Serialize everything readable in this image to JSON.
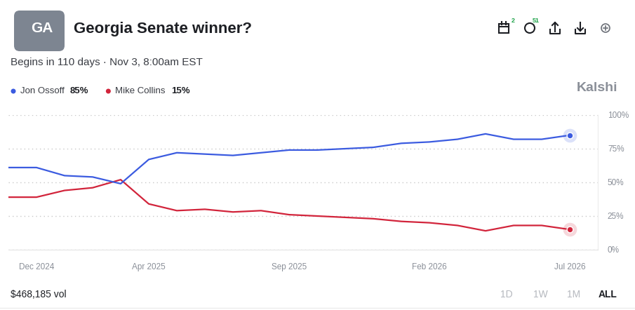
{
  "chart_data": {
    "type": "line",
    "title": "Georgia Senate winner?",
    "badge": "GA",
    "subtitle": "Begins in 110 days · Nov 3, 8:00am EST",
    "brand": "Kalshi",
    "icon_counts": [
      "2",
      "51"
    ],
    "volume": "$468,185 vol",
    "time_ranges": [
      "1D",
      "1W",
      "1M",
      "ALL"
    ],
    "x": [
      "2024-11",
      "2024-12",
      "2025-01",
      "2025-02",
      "2025-03",
      "2025-04",
      "2025-05",
      "2025-06",
      "2025-07",
      "2025-08",
      "2025-09",
      "2025-10",
      "2025-11",
      "2025-12",
      "2026-01",
      "2026-02",
      "2026-03",
      "2026-04",
      "2026-05",
      "2026-06",
      "2026-07"
    ],
    "series": [
      {
        "name": "Jon Ossoff",
        "current": "85%",
        "color": "#3b5be0",
        "line_style": "solid",
        "values": [
          61,
          61,
          55,
          54,
          49,
          67,
          72,
          71,
          70,
          72,
          74,
          74,
          75,
          76,
          79,
          80,
          82,
          86,
          82,
          82,
          85
        ]
      },
      {
        "name": "Mike Collins",
        "current": "15%",
        "color": "#d2243b",
        "line_style": "solid",
        "values": [
          39,
          39,
          44,
          46,
          52,
          34,
          29,
          30,
          28,
          29,
          26,
          25,
          24,
          23,
          21,
          20,
          18,
          14,
          18,
          18,
          15
        ]
      }
    ],
    "xlim": [
      "2024-11",
      "2026-08"
    ],
    "xticks": [
      {
        "value": "2024-12",
        "label": "Dec 2024"
      },
      {
        "value": "2025-04",
        "label": "Apr 2025"
      },
      {
        "value": "2025-09",
        "label": "Sep 2025"
      },
      {
        "value": "2026-02",
        "label": "Feb 2026"
      },
      {
        "value": "2026-07",
        "label": "Jul 2026"
      }
    ],
    "ylim": [
      0,
      100
    ],
    "yticks": [
      {
        "value": 0,
        "label": "0%"
      },
      {
        "value": 25,
        "label": "25%"
      },
      {
        "value": 50,
        "label": "50%"
      },
      {
        "value": 75,
        "label": "75%"
      },
      {
        "value": 100,
        "label": "100%"
      }
    ],
    "grid": true
  }
}
